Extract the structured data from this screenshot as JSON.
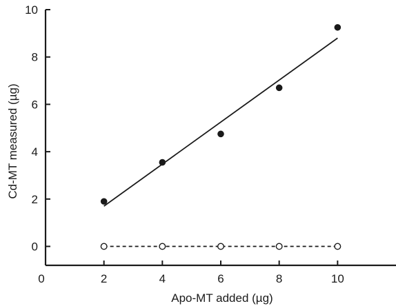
{
  "chart_data": {
    "type": "scatter",
    "title": "",
    "xlabel": "Apo-MT added (µg)",
    "ylabel": "Cd-MT measured (µg)",
    "xlim": [
      0,
      12
    ],
    "ylim": [
      -0.8,
      10
    ],
    "xticks": [
      0,
      2,
      4,
      6,
      8,
      10
    ],
    "yticks": [
      0,
      2,
      4,
      6,
      8,
      10
    ],
    "grid": false,
    "legend": "none",
    "series": [
      {
        "marker": "filled-circle",
        "color": "#1a1a1a",
        "x": [
          2,
          4,
          6,
          8,
          10
        ],
        "y": [
          1.9,
          3.55,
          4.75,
          6.7,
          9.25
        ],
        "fit": {
          "style": "solid",
          "x": [
            2,
            10
          ],
          "y": [
            1.7,
            8.8
          ]
        }
      },
      {
        "marker": "open-circle",
        "color": "#1a1a1a",
        "x": [
          2,
          4,
          6,
          8,
          10
        ],
        "y": [
          0,
          0,
          0,
          0,
          0
        ],
        "fit": {
          "style": "dashed",
          "x": [
            2,
            10
          ],
          "y": [
            0,
            0
          ]
        }
      }
    ]
  }
}
